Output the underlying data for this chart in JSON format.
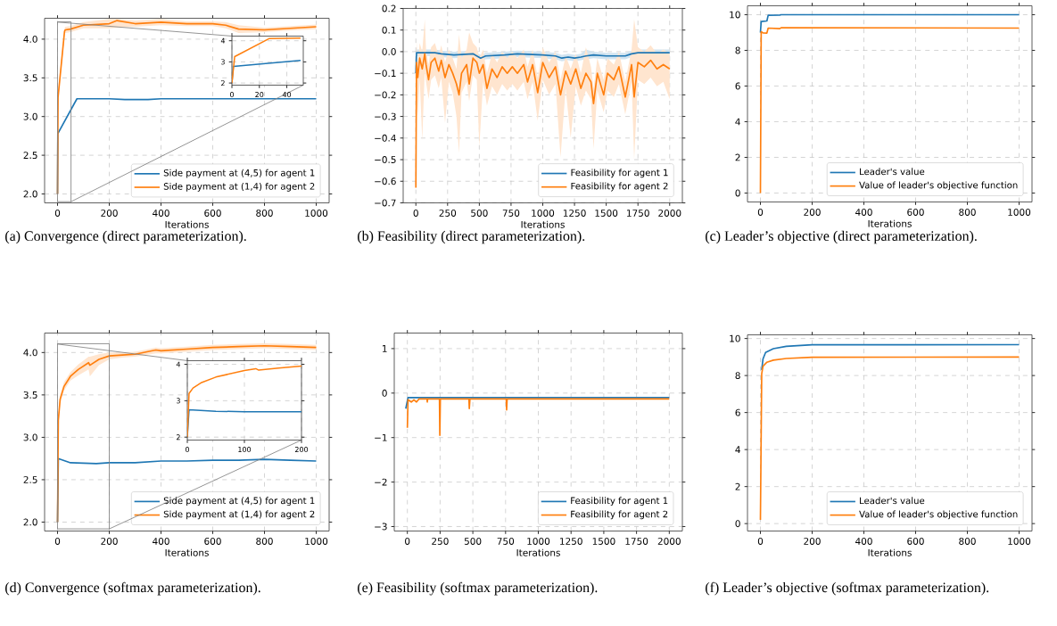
{
  "chart_data": [
    {
      "type": "line",
      "title": "(a) Convergence (direct parameterization).",
      "xlabel": "Iterations",
      "xlim": [
        -50,
        1050
      ],
      "xticks": [
        0,
        200,
        400,
        600,
        800,
        1000
      ],
      "ylim": [
        1.885,
        4.27
      ],
      "yticks": [
        {
          "value": 2,
          "label": "2.0"
        },
        {
          "value": 2.5,
          "label": "2.5"
        },
        {
          "value": 3,
          "label": "3.0"
        },
        {
          "value": 3.5,
          "label": "3.5"
        },
        {
          "value": 4,
          "label": "4.0"
        }
      ],
      "grid": true,
      "legend": "bottom right",
      "series": [
        {
          "name": "Side payment at (4,5) for agent 1",
          "color": "#1f77b4",
          "x": [
            0,
            1,
            75,
            200,
            260,
            350,
            400,
            1000
          ],
          "values": [
            2.0,
            2.78,
            3.23,
            3.23,
            3.22,
            3.22,
            3.23,
            3.23
          ]
        },
        {
          "name": "Side payment at (1,4) for agent 2",
          "color": "#ff7f0e",
          "x": [
            0,
            2,
            27,
            30,
            50,
            100,
            200,
            230,
            300,
            400,
            500,
            600,
            650,
            700,
            800,
            900,
            1000
          ],
          "values": [
            2.0,
            3.25,
            4.1,
            4.12,
            4.13,
            4.18,
            4.2,
            4.24,
            4.2,
            4.22,
            4.2,
            4.2,
            4.18,
            4.13,
            4.12,
            4.14,
            4.16
          ],
          "lower": [
            2.0,
            3.2,
            4.05,
            4.08,
            4.09,
            4.14,
            4.14,
            4.15,
            4.16,
            4.18,
            4.17,
            4.17,
            4.14,
            4.08,
            4.09,
            4.11,
            4.13
          ],
          "upper": [
            2.0,
            3.3,
            4.14,
            4.16,
            4.17,
            4.22,
            4.26,
            4.26,
            4.24,
            4.26,
            4.23,
            4.23,
            4.22,
            4.18,
            4.15,
            4.17,
            4.19
          ]
        }
      ]
    },
    {
      "type": "line",
      "xlim": [
        0,
        52
      ],
      "xticks": [
        0,
        20,
        40
      ],
      "ylim": [
        1.9,
        4.22
      ],
      "yticks": [
        2,
        3,
        4
      ],
      "grid": true,
      "series": [
        {
          "color": "#1f77b4",
          "x": [
            0,
            1,
            50
          ],
          "values": [
            2.0,
            2.78,
            3.07
          ]
        },
        {
          "color": "#ff7f0e",
          "x": [
            0,
            2,
            27,
            50
          ],
          "values": [
            2.0,
            3.25,
            4.1,
            4.12
          ]
        }
      ]
    },
    {
      "type": "line",
      "title": "(b) Feasibility (direct parameterization).",
      "xlabel": "Iterations",
      "xlim": [
        -100,
        2100
      ],
      "xticks": [
        0,
        250,
        500,
        750,
        1000,
        1250,
        1500,
        1750,
        2000
      ],
      "ylim": [
        -0.7,
        0.2
      ],
      "yticks": [
        {
          "value": -0.7,
          "label": "−0.7"
        },
        {
          "value": -0.6,
          "label": "−0.6"
        },
        {
          "value": -0.5,
          "label": "−0.5"
        },
        {
          "value": -0.4,
          "label": "−0.4"
        },
        {
          "value": -0.3,
          "label": "−0.3"
        },
        {
          "value": -0.2,
          "label": "−0.2"
        },
        {
          "value": -0.1,
          "label": "−0.1"
        },
        {
          "value": 0,
          "label": "0.0"
        },
        0.1,
        0.2
      ],
      "grid": true,
      "legend": "bottom right",
      "series": [
        {
          "name": "Feasibility for agent 1",
          "color": "#1f77b4",
          "x": [
            0,
            5,
            150,
            200,
            300,
            450,
            510,
            550,
            700,
            800,
            1000,
            1100,
            1150,
            1200,
            1250,
            1300,
            1340,
            1400,
            1500,
            1650,
            1700,
            1750,
            2000
          ],
          "values": [
            -0.1,
            -0.005,
            -0.005,
            -0.01,
            -0.015,
            -0.01,
            -0.03,
            -0.02,
            -0.015,
            -0.01,
            -0.015,
            -0.02,
            -0.03,
            -0.025,
            -0.03,
            -0.025,
            -0.02,
            -0.015,
            -0.02,
            -0.02,
            -0.01,
            -0.005,
            -0.005
          ],
          "lower": [
            -0.12,
            -0.02,
            -0.02,
            -0.025,
            -0.03,
            -0.025,
            -0.045,
            -0.035,
            -0.03,
            -0.025,
            -0.03,
            -0.035,
            -0.045,
            -0.04,
            -0.045,
            -0.04,
            -0.035,
            -0.03,
            -0.035,
            -0.035,
            -0.025,
            -0.02,
            -0.02
          ],
          "upper": [
            -0.08,
            0.01,
            0.01,
            0.005,
            0.0,
            0.005,
            -0.015,
            -0.005,
            0.0,
            0.005,
            0.0,
            -0.005,
            -0.015,
            -0.01,
            -0.015,
            -0.01,
            0.01,
            0.0,
            -0.005,
            -0.005,
            0.005,
            0.01,
            0.01
          ]
        },
        {
          "name": "Feasibility for agent 2",
          "color": "#ff7f0e",
          "x": [
            0,
            5,
            15,
            30,
            50,
            70,
            80,
            100,
            120,
            150,
            180,
            200,
            230,
            260,
            290,
            320,
            340,
            360,
            400,
            420,
            450,
            480,
            500,
            530,
            560,
            600,
            640,
            680,
            720,
            760,
            800,
            850,
            880,
            920,
            960,
            1000,
            1050,
            1100,
            1140,
            1180,
            1220,
            1260,
            1300,
            1340,
            1380,
            1400,
            1430,
            1480,
            1510,
            1560,
            1600,
            1650,
            1700,
            1720,
            1750,
            1800,
            1850,
            1900,
            1950,
            2000
          ],
          "values": [
            -0.63,
            -0.05,
            -0.12,
            -0.03,
            -0.08,
            -0.01,
            -0.06,
            -0.13,
            -0.05,
            -0.03,
            -0.09,
            -0.04,
            -0.12,
            -0.06,
            -0.1,
            -0.15,
            -0.2,
            -0.1,
            -0.06,
            -0.15,
            -0.03,
            -0.05,
            -0.1,
            -0.06,
            -0.17,
            -0.08,
            -0.12,
            -0.07,
            -0.1,
            -0.07,
            -0.1,
            -0.06,
            -0.14,
            -0.06,
            -0.19,
            -0.05,
            -0.12,
            -0.07,
            -0.2,
            -0.09,
            -0.15,
            -0.08,
            -0.17,
            -0.1,
            -0.14,
            -0.24,
            -0.1,
            -0.2,
            -0.1,
            -0.13,
            -0.07,
            -0.21,
            -0.06,
            -0.21,
            -0.05,
            -0.07,
            -0.04,
            -0.08,
            -0.06,
            -0.08
          ],
          "lower": [
            -0.63,
            -0.2,
            -0.3,
            -0.12,
            -0.41,
            -0.09,
            -0.14,
            -0.22,
            -0.13,
            -0.11,
            -0.17,
            -0.12,
            -0.33,
            -0.14,
            -0.19,
            -0.3,
            -0.47,
            -0.19,
            -0.14,
            -0.23,
            -0.11,
            -0.13,
            -0.44,
            -0.14,
            -0.25,
            -0.16,
            -0.2,
            -0.15,
            -0.18,
            -0.15,
            -0.18,
            -0.14,
            -0.22,
            -0.14,
            -0.32,
            -0.13,
            -0.2,
            -0.15,
            -0.49,
            -0.17,
            -0.4,
            -0.16,
            -0.25,
            -0.18,
            -0.22,
            -0.45,
            -0.18,
            -0.28,
            -0.18,
            -0.21,
            -0.15,
            -0.29,
            -0.14,
            -0.5,
            -0.13,
            -0.15,
            -0.12,
            -0.16,
            -0.14,
            -0.22
          ],
          "upper": [
            -0.63,
            0.05,
            -0.05,
            0.04,
            0.0,
            0.15,
            0.01,
            -0.06,
            0.02,
            0.04,
            -0.02,
            0.03,
            -0.05,
            0.01,
            -0.03,
            -0.08,
            0.08,
            -0.03,
            0.01,
            0.09,
            0.04,
            0.02,
            -0.03,
            0.01,
            -0.1,
            -0.01,
            -0.05,
            0.0,
            -0.03,
            0.0,
            -0.03,
            0.01,
            -0.07,
            0.01,
            -0.12,
            0.02,
            -0.05,
            0.0,
            -0.13,
            -0.02,
            -0.08,
            -0.01,
            -0.1,
            0.02,
            -0.07,
            -0.17,
            -0.03,
            -0.13,
            -0.03,
            -0.06,
            0.0,
            -0.14,
            0.01,
            0.15,
            0.02,
            0.0,
            0.03,
            -0.01,
            0.01,
            -0.01
          ]
        }
      ]
    },
    {
      "type": "line",
      "title": "(c) Leader’s objective (direct parameterization).",
      "xlabel": "Iterations",
      "xlim": [
        -50,
        1050
      ],
      "xticks": [
        0,
        200,
        400,
        600,
        800,
        1000
      ],
      "ylim": [
        -0.5,
        10.5
      ],
      "yticks": [
        0,
        2,
        4,
        6,
        8,
        10
      ],
      "grid": true,
      "legend": "bottom right",
      "series": [
        {
          "name": "Leader's value",
          "color": "#1f77b4",
          "x": [
            0,
            3,
            25,
            30,
            75,
            80,
            1000
          ],
          "values": [
            9.0,
            9.62,
            9.65,
            9.97,
            9.98,
            10.0,
            10.0
          ]
        },
        {
          "name": "Value of leader's objective function",
          "color": "#ff7f0e",
          "x": [
            0,
            3,
            10,
            25,
            30,
            75,
            80,
            1000
          ],
          "values": [
            0,
            9.05,
            8.98,
            8.97,
            9.25,
            9.22,
            9.27,
            9.25
          ]
        }
      ]
    },
    {
      "type": "line",
      "title": "(d) Convergence (softmax parameterization).",
      "xlabel": "Iterations",
      "xlim": [
        -50,
        1050
      ],
      "xticks": [
        0,
        200,
        400,
        600,
        800,
        1000
      ],
      "ylim": [
        1.895,
        4.23
      ],
      "yticks": [
        {
          "value": 2,
          "label": "2.0"
        },
        {
          "value": 2.5,
          "label": "2.5"
        },
        {
          "value": 3,
          "label": "3.0"
        },
        {
          "value": 3.5,
          "label": "3.5"
        },
        {
          "value": 4,
          "label": "4.0"
        }
      ],
      "grid": true,
      "legend": "bottom right",
      "series": [
        {
          "name": "Side payment at (4,5) for agent 1",
          "color": "#1f77b4",
          "x": [
            0,
            3,
            50,
            150,
            200,
            300,
            400,
            500,
            600,
            700,
            800,
            900,
            1000
          ],
          "values": [
            2.0,
            2.75,
            2.7,
            2.69,
            2.7,
            2.7,
            2.72,
            2.72,
            2.73,
            2.73,
            2.74,
            2.73,
            2.72
          ]
        },
        {
          "name": "Side payment at (1,4) for agent 2",
          "color": "#ff7f0e",
          "x": [
            0,
            3,
            10,
            25,
            50,
            80,
            120,
            125,
            160,
            200,
            250,
            300,
            380,
            400,
            500,
            600,
            700,
            800,
            900,
            1000
          ],
          "values": [
            2.0,
            3.2,
            3.45,
            3.6,
            3.72,
            3.8,
            3.88,
            3.85,
            3.92,
            3.96,
            3.97,
            3.98,
            4.03,
            4.02,
            4.04,
            4.06,
            4.07,
            4.08,
            4.07,
            4.06
          ],
          "lower": [
            2.0,
            3.15,
            3.4,
            3.55,
            3.67,
            3.73,
            3.8,
            3.72,
            3.85,
            3.92,
            3.94,
            3.95,
            3.99,
            3.99,
            4.01,
            4.03,
            4.04,
            4.05,
            4.04,
            4.03
          ],
          "upper": [
            2.0,
            3.25,
            3.5,
            3.65,
            3.77,
            3.86,
            3.95,
            3.95,
            3.98,
            4.0,
            4.0,
            4.01,
            4.06,
            4.05,
            4.07,
            4.09,
            4.1,
            4.11,
            4.1,
            4.09
          ]
        }
      ]
    },
    {
      "type": "line",
      "xlim": [
        0,
        200
      ],
      "xticks": [
        0,
        100,
        200
      ],
      "ylim": [
        1.92,
        4.1
      ],
      "yticks": [
        2,
        3,
        4
      ],
      "grid": true,
      "series": [
        {
          "color": "#1f77b4",
          "x": [
            0,
            3,
            50,
            100,
            200
          ],
          "values": [
            2.0,
            2.75,
            2.71,
            2.7,
            2.7
          ]
        },
        {
          "color": "#ff7f0e",
          "x": [
            0,
            3,
            10,
            25,
            50,
            100,
            120,
            125,
            160,
            200
          ],
          "values": [
            2.0,
            3.2,
            3.35,
            3.5,
            3.65,
            3.83,
            3.88,
            3.84,
            3.9,
            3.95
          ]
        }
      ]
    },
    {
      "type": "line",
      "title": "(e) Feasibility (softmax parameterization).",
      "xlabel": "Iterations",
      "xlim": [
        -100,
        2100
      ],
      "xticks": [
        0,
        250,
        500,
        750,
        1000,
        1250,
        1500,
        1750,
        2000
      ],
      "ylim": [
        -3.1,
        1.35
      ],
      "yticks": [
        {
          "value": -3,
          "label": "−3"
        },
        {
          "value": -2,
          "label": "−2"
        },
        {
          "value": -1,
          "label": "−1"
        },
        0,
        1
      ],
      "grid": true,
      "legend": "bottom right",
      "series": [
        {
          "name": "Feasibility for agent 1",
          "color": "#1f77b4",
          "x": [
            -12,
            5,
            2000
          ],
          "values": [
            -0.35,
            -0.1,
            -0.1
          ]
        },
        {
          "name": "Feasibility for agent 2",
          "color": "#ff7f0e",
          "x": [
            0,
            5,
            30,
            50,
            70,
            90,
            150,
            152,
            155,
            245,
            248,
            252,
            470,
            473,
            478,
            755,
            758,
            762,
            2000
          ],
          "values": [
            -0.78,
            -0.15,
            -0.2,
            -0.15,
            -0.2,
            -0.13,
            -0.13,
            -0.2,
            -0.13,
            -0.13,
            -0.95,
            -0.13,
            -0.13,
            -0.35,
            -0.13,
            -0.13,
            -0.38,
            -0.13,
            -0.13
          ]
        }
      ]
    },
    {
      "type": "line",
      "title": "(f) Leader’s objective (softmax parameterization).",
      "xlabel": "Iterations",
      "xlim": [
        -50,
        1050
      ],
      "xticks": [
        0,
        200,
        400,
        600,
        800,
        1000
      ],
      "ylim": [
        -0.4,
        10.2
      ],
      "yticks": [
        0,
        2,
        4,
        6,
        8,
        10
      ],
      "grid": true,
      "legend": "bottom right",
      "series": [
        {
          "name": "Leader's value",
          "color": "#1f77b4",
          "x": [
            5,
            10,
            20,
            50,
            100,
            200,
            1000
          ],
          "values": [
            8.3,
            8.9,
            9.25,
            9.45,
            9.58,
            9.66,
            9.67
          ]
        },
        {
          "name": "Value of leader's objective function",
          "color": "#ff7f0e",
          "x": [
            0,
            5,
            10,
            25,
            50,
            100,
            200,
            1000
          ],
          "values": [
            0.2,
            8.1,
            8.5,
            8.72,
            8.83,
            8.92,
            8.99,
            9.0
          ]
        }
      ]
    }
  ]
}
